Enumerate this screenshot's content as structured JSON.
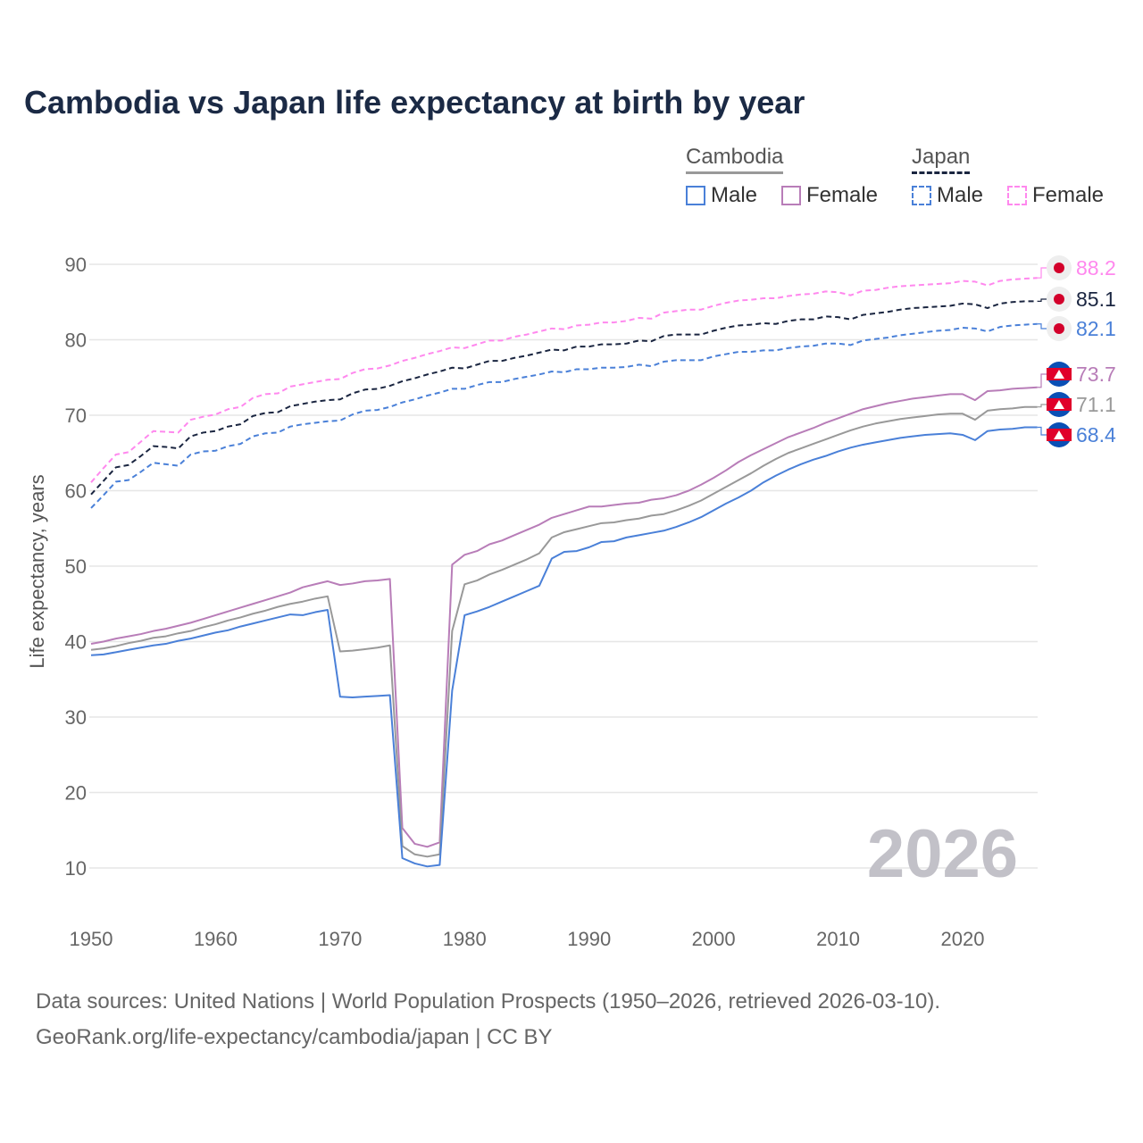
{
  "chart_data": {
    "type": "line",
    "title": "Cambodia vs Japan life expectancy at birth by year",
    "xlabel": "",
    "ylabel": "Life expectancy, years",
    "xlim": [
      1950,
      2026
    ],
    "ylim": [
      5,
      92
    ],
    "yticks": [
      10,
      20,
      30,
      40,
      50,
      60,
      70,
      80,
      90
    ],
    "xticks": [
      1950,
      1960,
      1970,
      1980,
      1990,
      2000,
      2010,
      2020
    ],
    "grid": true,
    "year_watermark": "2026",
    "legend": {
      "position": "top-right",
      "groups": [
        {
          "name": "Cambodia",
          "items": [
            "Male",
            "Female"
          ]
        },
        {
          "name": "Japan",
          "items": [
            "Male",
            "Female"
          ]
        }
      ]
    },
    "x_start": 1950,
    "series": [
      {
        "country": "Japan",
        "name": "Female",
        "color": "#ff88ee",
        "dashed": true,
        "end_label": "88.2",
        "values": [
          61.1,
          63.0,
          64.8,
          65.1,
          66.5,
          67.9,
          67.8,
          67.7,
          69.4,
          69.8,
          70.1,
          70.8,
          71.1,
          72.3,
          72.8,
          72.9,
          73.8,
          74.1,
          74.4,
          74.7,
          74.8,
          75.6,
          76.1,
          76.2,
          76.6,
          77.2,
          77.6,
          78.1,
          78.5,
          79.0,
          78.9,
          79.4,
          79.9,
          79.9,
          80.4,
          80.7,
          81.1,
          81.5,
          81.4,
          81.9,
          82.0,
          82.3,
          82.3,
          82.5,
          82.9,
          82.8,
          83.6,
          83.8,
          84.0,
          84.0,
          84.5,
          84.9,
          85.2,
          85.3,
          85.5,
          85.5,
          85.8,
          86.0,
          86.1,
          86.4,
          86.3,
          85.9,
          86.5,
          86.6,
          86.9,
          87.1,
          87.2,
          87.3,
          87.4,
          87.5,
          87.8,
          87.7,
          87.2,
          87.8,
          88.0,
          88.1,
          88.2
        ]
      },
      {
        "country": "Japan",
        "name": "Total",
        "color": "#1a2540",
        "dashed": true,
        "end_label": "85.1",
        "values": [
          59.5,
          61.3,
          63.1,
          63.4,
          64.6,
          65.9,
          65.8,
          65.6,
          67.2,
          67.7,
          67.9,
          68.5,
          68.8,
          69.9,
          70.3,
          70.4,
          71.2,
          71.5,
          71.8,
          72.0,
          72.1,
          72.9,
          73.4,
          73.5,
          73.9,
          74.5,
          74.9,
          75.4,
          75.8,
          76.3,
          76.2,
          76.7,
          77.2,
          77.2,
          77.6,
          77.9,
          78.3,
          78.7,
          78.6,
          79.1,
          79.1,
          79.4,
          79.4,
          79.5,
          79.9,
          79.8,
          80.5,
          80.7,
          80.7,
          80.7,
          81.2,
          81.6,
          81.9,
          82.0,
          82.2,
          82.1,
          82.5,
          82.7,
          82.7,
          83.1,
          83.0,
          82.7,
          83.3,
          83.5,
          83.7,
          84.0,
          84.2,
          84.3,
          84.4,
          84.5,
          84.8,
          84.7,
          84.2,
          84.8,
          85.0,
          85.1,
          85.1
        ]
      },
      {
        "country": "Japan",
        "name": "Male",
        "color": "#4a80d8",
        "dashed": true,
        "end_label": "82.1",
        "values": [
          57.7,
          59.4,
          61.2,
          61.4,
          62.5,
          63.7,
          63.5,
          63.3,
          64.8,
          65.2,
          65.3,
          65.9,
          66.2,
          67.2,
          67.6,
          67.7,
          68.5,
          68.8,
          69.0,
          69.2,
          69.3,
          70.1,
          70.6,
          70.7,
          71.1,
          71.7,
          72.1,
          72.6,
          73.0,
          73.5,
          73.5,
          74.0,
          74.4,
          74.4,
          74.8,
          75.1,
          75.4,
          75.8,
          75.7,
          76.1,
          76.1,
          76.3,
          76.3,
          76.4,
          76.7,
          76.5,
          77.1,
          77.3,
          77.3,
          77.3,
          77.8,
          78.1,
          78.4,
          78.4,
          78.6,
          78.6,
          78.9,
          79.1,
          79.2,
          79.5,
          79.5,
          79.3,
          79.9,
          80.1,
          80.3,
          80.6,
          80.8,
          81.0,
          81.2,
          81.3,
          81.6,
          81.5,
          81.1,
          81.7,
          81.9,
          82.0,
          82.1
        ]
      },
      {
        "country": "Cambodia",
        "name": "Female",
        "color": "#b87db8",
        "dashed": false,
        "end_label": "73.7",
        "values": [
          39.7,
          40.0,
          40.4,
          40.7,
          41.0,
          41.4,
          41.7,
          42.1,
          42.5,
          43.0,
          43.5,
          44.0,
          44.5,
          45.0,
          45.5,
          46.0,
          46.5,
          47.2,
          47.6,
          48.0,
          47.5,
          47.7,
          48.0,
          48.1,
          48.3,
          15.3,
          13.2,
          12.8,
          13.4,
          50.2,
          51.5,
          52.0,
          52.9,
          53.4,
          54.1,
          54.8,
          55.5,
          56.4,
          56.9,
          57.4,
          57.9,
          57.9,
          58.1,
          58.3,
          58.4,
          58.8,
          59.0,
          59.4,
          60.0,
          60.8,
          61.7,
          62.7,
          63.8,
          64.7,
          65.5,
          66.3,
          67.1,
          67.7,
          68.3,
          69.0,
          69.6,
          70.2,
          70.8,
          71.2,
          71.6,
          71.9,
          72.2,
          72.4,
          72.6,
          72.8,
          72.8,
          72.0,
          73.2,
          73.3,
          73.5,
          73.6,
          73.7
        ]
      },
      {
        "country": "Cambodia",
        "name": "Total",
        "color": "#999999",
        "dashed": false,
        "end_label": "71.1",
        "values": [
          38.9,
          39.1,
          39.4,
          39.8,
          40.1,
          40.5,
          40.7,
          41.1,
          41.4,
          41.9,
          42.3,
          42.8,
          43.2,
          43.7,
          44.1,
          44.6,
          45.0,
          45.3,
          45.7,
          46.0,
          38.7,
          38.8,
          39.0,
          39.2,
          39.5,
          12.9,
          11.8,
          11.5,
          11.8,
          41.4,
          47.6,
          48.1,
          48.9,
          49.5,
          50.2,
          50.9,
          51.7,
          53.8,
          54.5,
          54.9,
          55.3,
          55.7,
          55.8,
          56.1,
          56.3,
          56.7,
          56.9,
          57.4,
          58.0,
          58.7,
          59.6,
          60.5,
          61.4,
          62.3,
          63.3,
          64.2,
          65.0,
          65.6,
          66.2,
          66.8,
          67.4,
          68.0,
          68.5,
          68.9,
          69.2,
          69.5,
          69.7,
          69.9,
          70.1,
          70.2,
          70.2,
          69.4,
          70.6,
          70.8,
          70.9,
          71.1,
          71.1
        ]
      },
      {
        "country": "Cambodia",
        "name": "Male",
        "color": "#4a80d8",
        "dashed": false,
        "end_label": "68.4",
        "values": [
          38.2,
          38.3,
          38.6,
          38.9,
          39.2,
          39.5,
          39.7,
          40.1,
          40.4,
          40.8,
          41.2,
          41.5,
          42.0,
          42.4,
          42.8,
          43.2,
          43.6,
          43.5,
          43.9,
          44.2,
          32.7,
          32.6,
          32.7,
          32.8,
          32.9,
          11.3,
          10.6,
          10.2,
          10.4,
          33.5,
          43.5,
          44.0,
          44.6,
          45.3,
          46.0,
          46.7,
          47.4,
          51.0,
          51.9,
          52.0,
          52.5,
          53.2,
          53.3,
          53.8,
          54.1,
          54.4,
          54.7,
          55.2,
          55.8,
          56.5,
          57.4,
          58.3,
          59.1,
          60.0,
          61.1,
          62.0,
          62.8,
          63.5,
          64.1,
          64.6,
          65.2,
          65.7,
          66.1,
          66.4,
          66.7,
          67.0,
          67.2,
          67.4,
          67.5,
          67.6,
          67.4,
          66.7,
          67.9,
          68.1,
          68.2,
          68.4,
          68.4
        ]
      }
    ]
  },
  "footer": {
    "line1": "Data sources: United Nations | World Population Prospects (1950–2026, retrieved 2026-03-10).",
    "line2": "GeoRank.org/life-expectancy/cambodia/japan | CC BY"
  }
}
